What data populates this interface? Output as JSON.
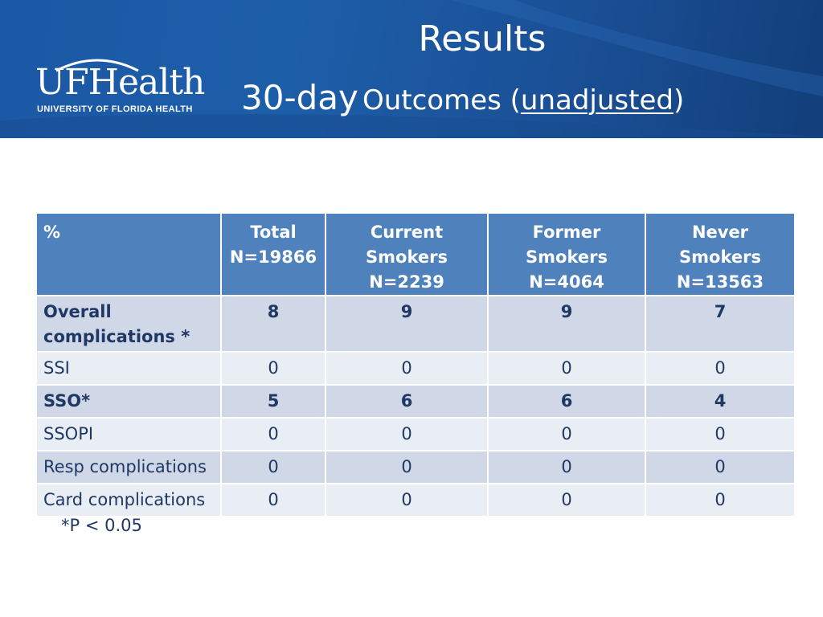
{
  "header": {
    "title": "Results",
    "subtitle_big": "30-day",
    "subtitle_mid": "Outcomes (",
    "subtitle_underlined": "unadjusted",
    "subtitle_end": ")",
    "logo_text": "UFHealth",
    "logo_subtext": "UNIVERSITY OF FLORIDA HEALTH"
  },
  "table": {
    "columns": [
      {
        "line1": "%",
        "line2": ""
      },
      {
        "line1": "Total",
        "line2": "N=19866"
      },
      {
        "line1": "Current Smokers",
        "line2": "N=2239"
      },
      {
        "line1": "Former Smokers",
        "line2": "N=4064"
      },
      {
        "line1": "Never Smokers",
        "line2": "N=13563"
      }
    ],
    "rows": [
      {
        "label_line1": "Overall",
        "label_line2": "complications *",
        "values": [
          "8",
          "9",
          "9",
          "7"
        ]
      },
      {
        "label": "SSI",
        "values": [
          "0",
          "0",
          "0",
          "0"
        ]
      },
      {
        "label": "SSO*",
        "values": [
          "5",
          "6",
          "6",
          "4"
        ]
      },
      {
        "label": "SSOPI",
        "values": [
          "0",
          "0",
          "0",
          "0"
        ]
      },
      {
        "label": "Resp complications",
        "values": [
          "0",
          "0",
          "0",
          "0"
        ]
      },
      {
        "label": "Card complications",
        "values": [
          "0",
          "0",
          "0",
          "0"
        ]
      }
    ]
  },
  "footnote": "*P < 0.05",
  "colors": {
    "header_background": "#1b58a5",
    "table_header": "#4f81bd",
    "row_dark": "#d0d8e8",
    "row_light": "#e9edf4",
    "text": "#1f3864"
  }
}
